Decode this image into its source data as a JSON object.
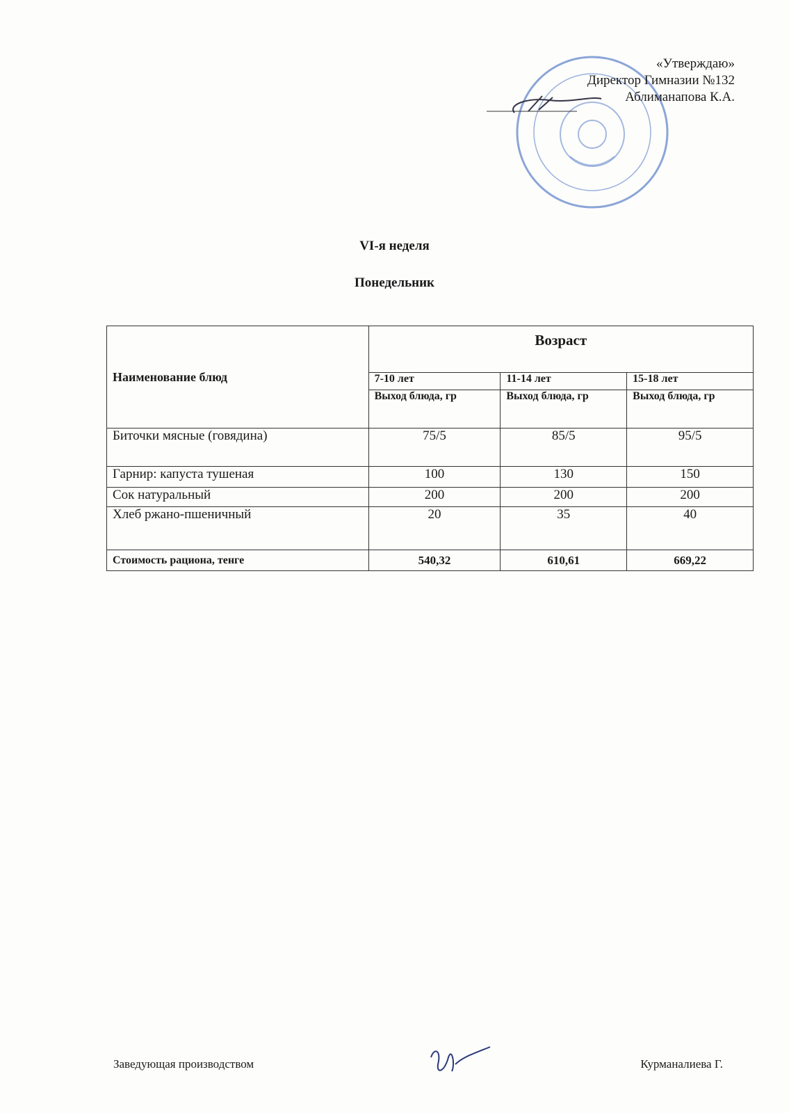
{
  "approval": {
    "line1": "«Утверждаю»",
    "line2": "Директор Гимназии №132",
    "line3": "Аблиманапова К.А."
  },
  "stamp_colors": {
    "ink": "#5a7fc8"
  },
  "week_title": "VI-я  неделя",
  "day_title": "Понедельник",
  "table": {
    "name_header": "Наименование  блюд",
    "age_header": "Возраст",
    "age_groups": [
      "7-10 лет",
      "11-14 лет",
      "15-18 лет"
    ],
    "output_labels": [
      "Выход  блюда, гр",
      "Выход  блюда, гр",
      "Выход  блюда, гр"
    ],
    "rows": [
      {
        "name": "Биточки мясные (говядина)",
        "values": [
          "75/5",
          "85/5",
          "95/5"
        ]
      },
      {
        "name": "Гарнир: капуста тушеная",
        "values": [
          "100",
          "130",
          "150"
        ]
      },
      {
        "name": "Сок натуральный",
        "values": [
          "200",
          "200",
          "200"
        ]
      },
      {
        "name": "Хлеб ржано-пшеничный",
        "values": [
          "20",
          "35",
          "40"
        ]
      }
    ],
    "total": {
      "label": "Стоимость рациона, тенге",
      "values": [
        "540,32",
        "610,61",
        "669,22"
      ]
    }
  },
  "footer": {
    "position": "Заведующая производством",
    "name": "Курманалиева Г."
  }
}
